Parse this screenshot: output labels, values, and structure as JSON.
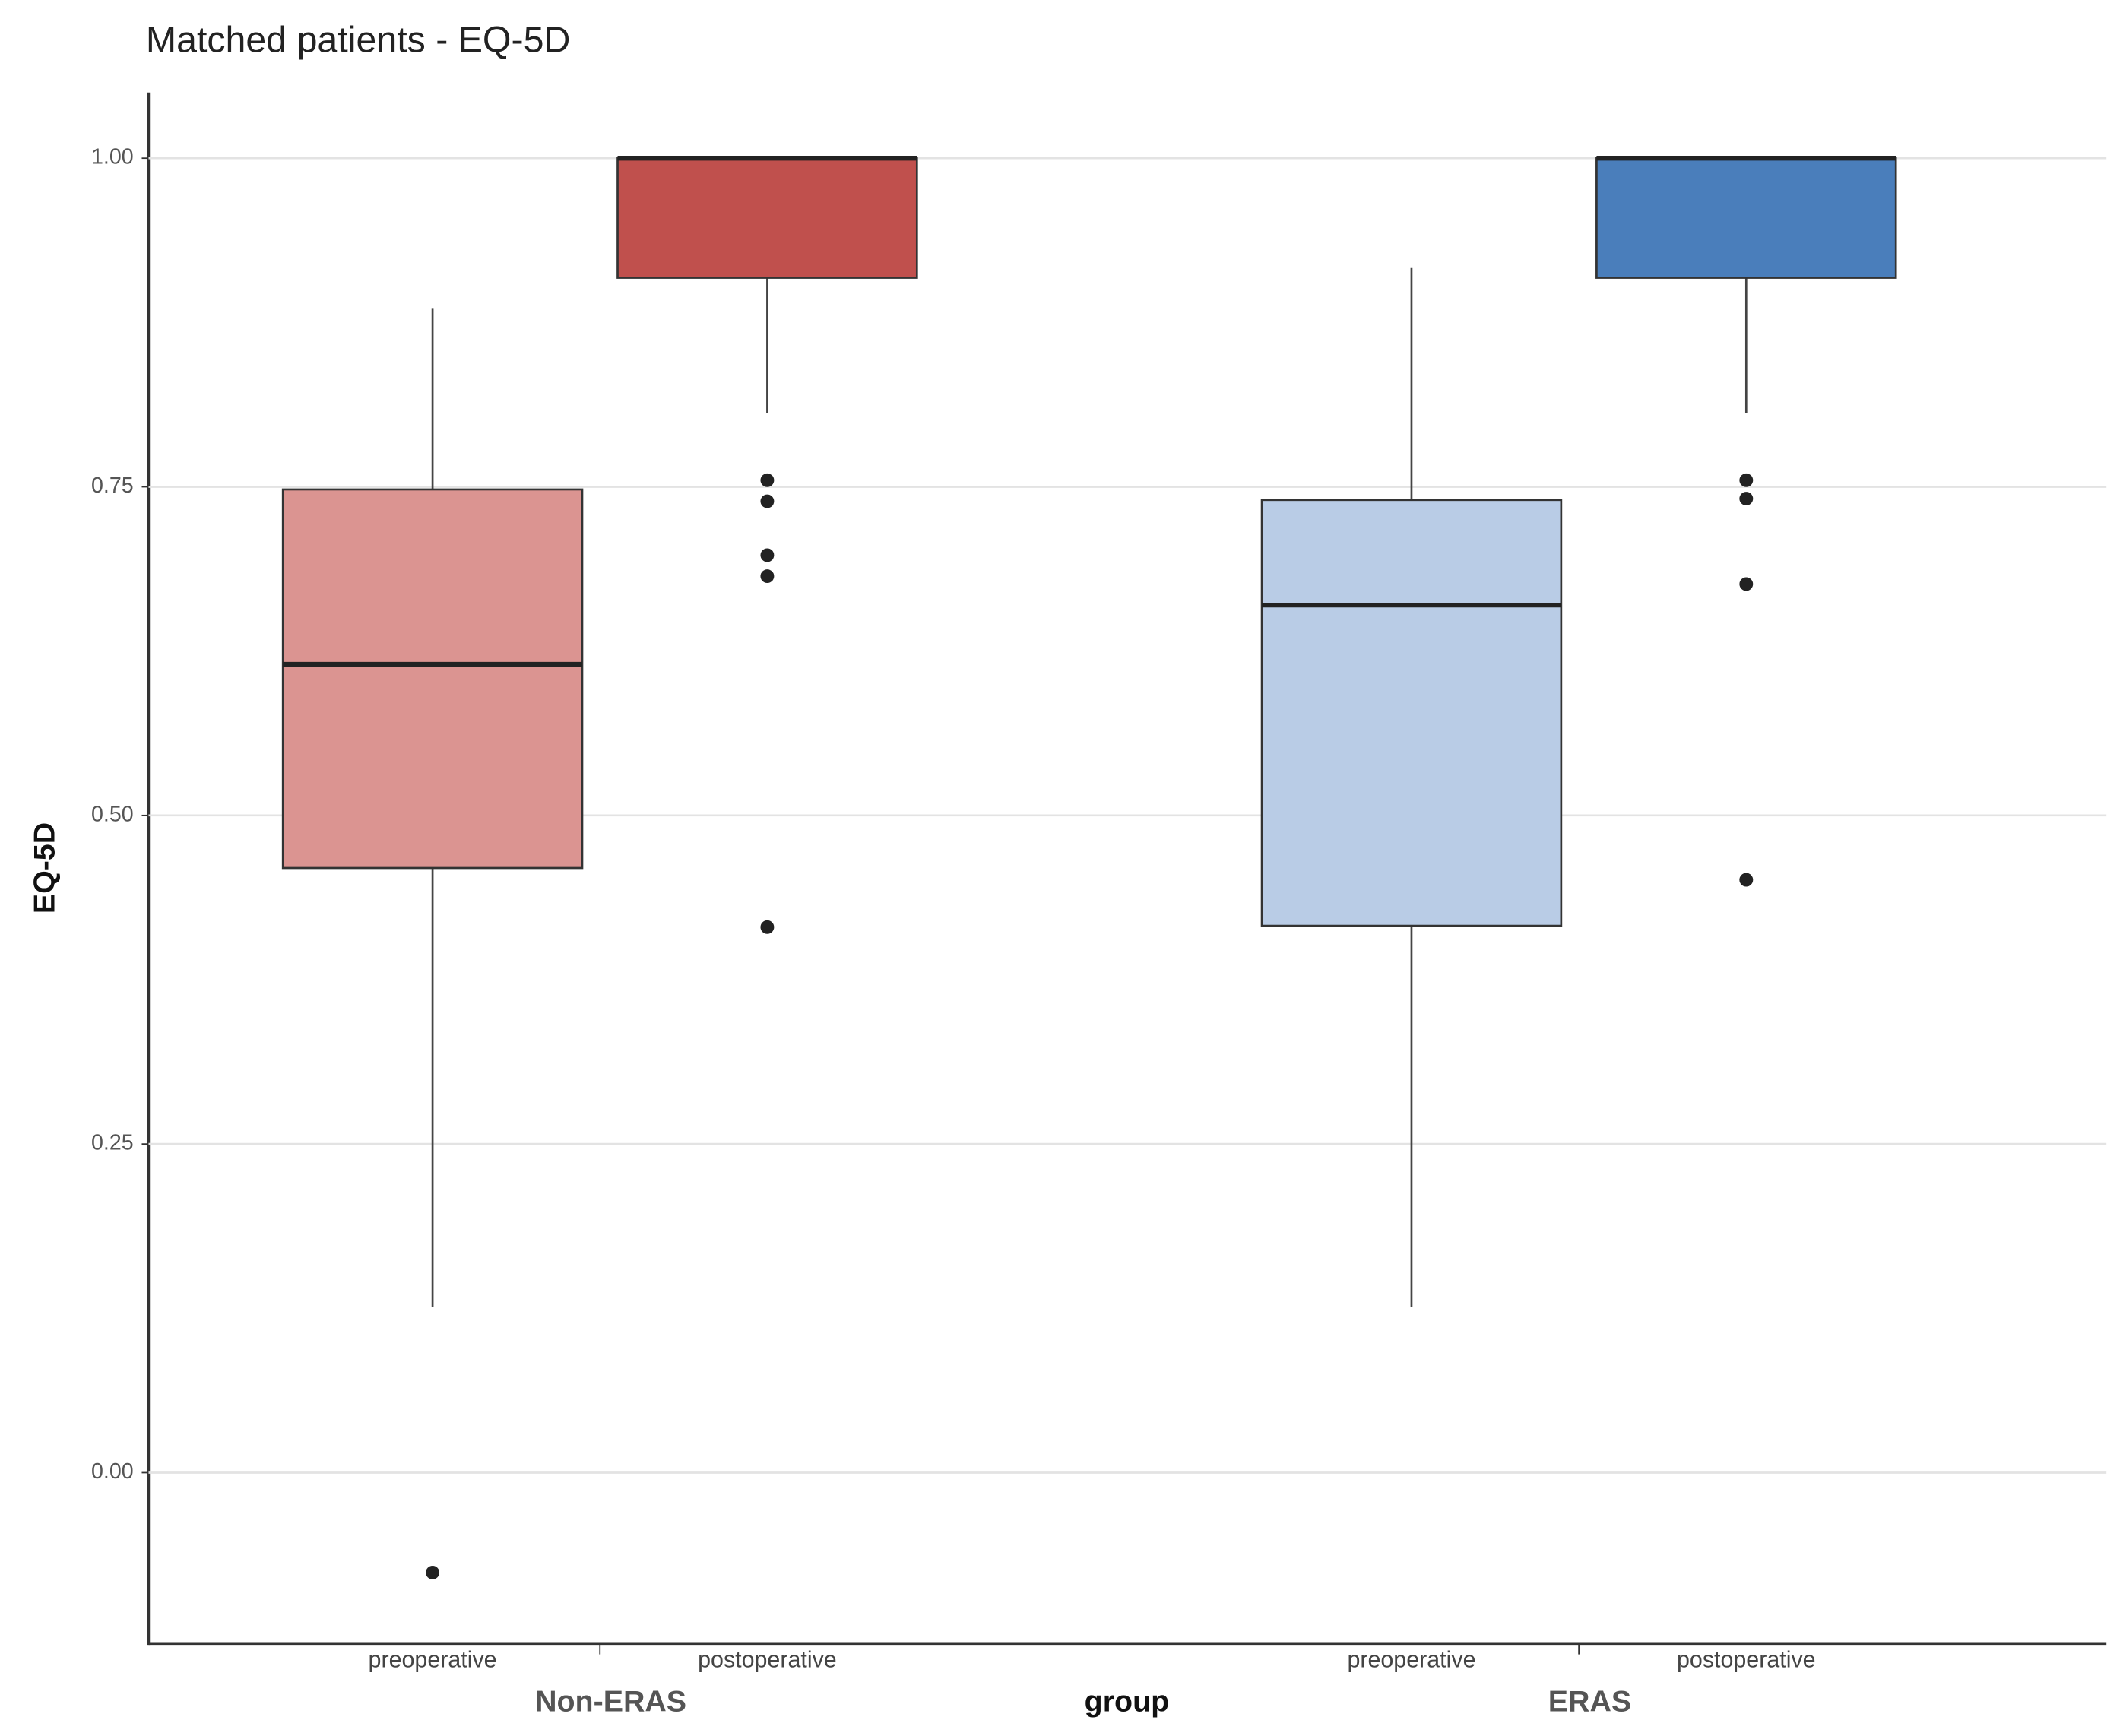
{
  "chart_data": {
    "type": "box",
    "title": "Matched patients - EQ-5D",
    "x_label": "group",
    "y_label": "EQ-5D",
    "ylim": [
      -0.13,
      1.05
    ],
    "yticks": [
      {
        "value": 0,
        "label": "0.00"
      },
      {
        "value": 0.25,
        "label": "0.25"
      },
      {
        "value": 0.5,
        "label": "0.50"
      },
      {
        "value": 0.75,
        "label": "0.75"
      },
      {
        "value": 1,
        "label": "1.00"
      }
    ],
    "grid": true,
    "groups": [
      {
        "name": "Non-ERAS",
        "boxes": [
          {
            "label": "preoperative",
            "color": "#db9491",
            "whisker_low": 0.126,
            "q1": 0.46,
            "median": 0.615,
            "q3": 0.748,
            "whisker_high": 0.886,
            "outliers": [
              -0.076
            ]
          },
          {
            "label": "postoperative",
            "color": "#c0504d",
            "whisker_low": 0.806,
            "q1": 0.909,
            "median": 1.0,
            "q3": 1.0,
            "whisker_high": 1.0,
            "outliers": [
              0.755,
              0.739,
              0.698,
              0.682,
              0.415
            ]
          }
        ]
      },
      {
        "name": "ERAS",
        "boxes": [
          {
            "label": "preoperative",
            "color": "#b9cce6",
            "whisker_low": 0.126,
            "q1": 0.416,
            "median": 0.66,
            "q3": 0.74,
            "whisker_high": 0.917,
            "outliers": []
          },
          {
            "label": "postoperative",
            "color": "#4a7ebb",
            "whisker_low": 0.806,
            "q1": 0.909,
            "median": 1.0,
            "q3": 1.0,
            "whisker_high": 1.0,
            "outliers": [
              0.755,
              0.741,
              0.676,
              0.451
            ]
          }
        ]
      }
    ]
  }
}
